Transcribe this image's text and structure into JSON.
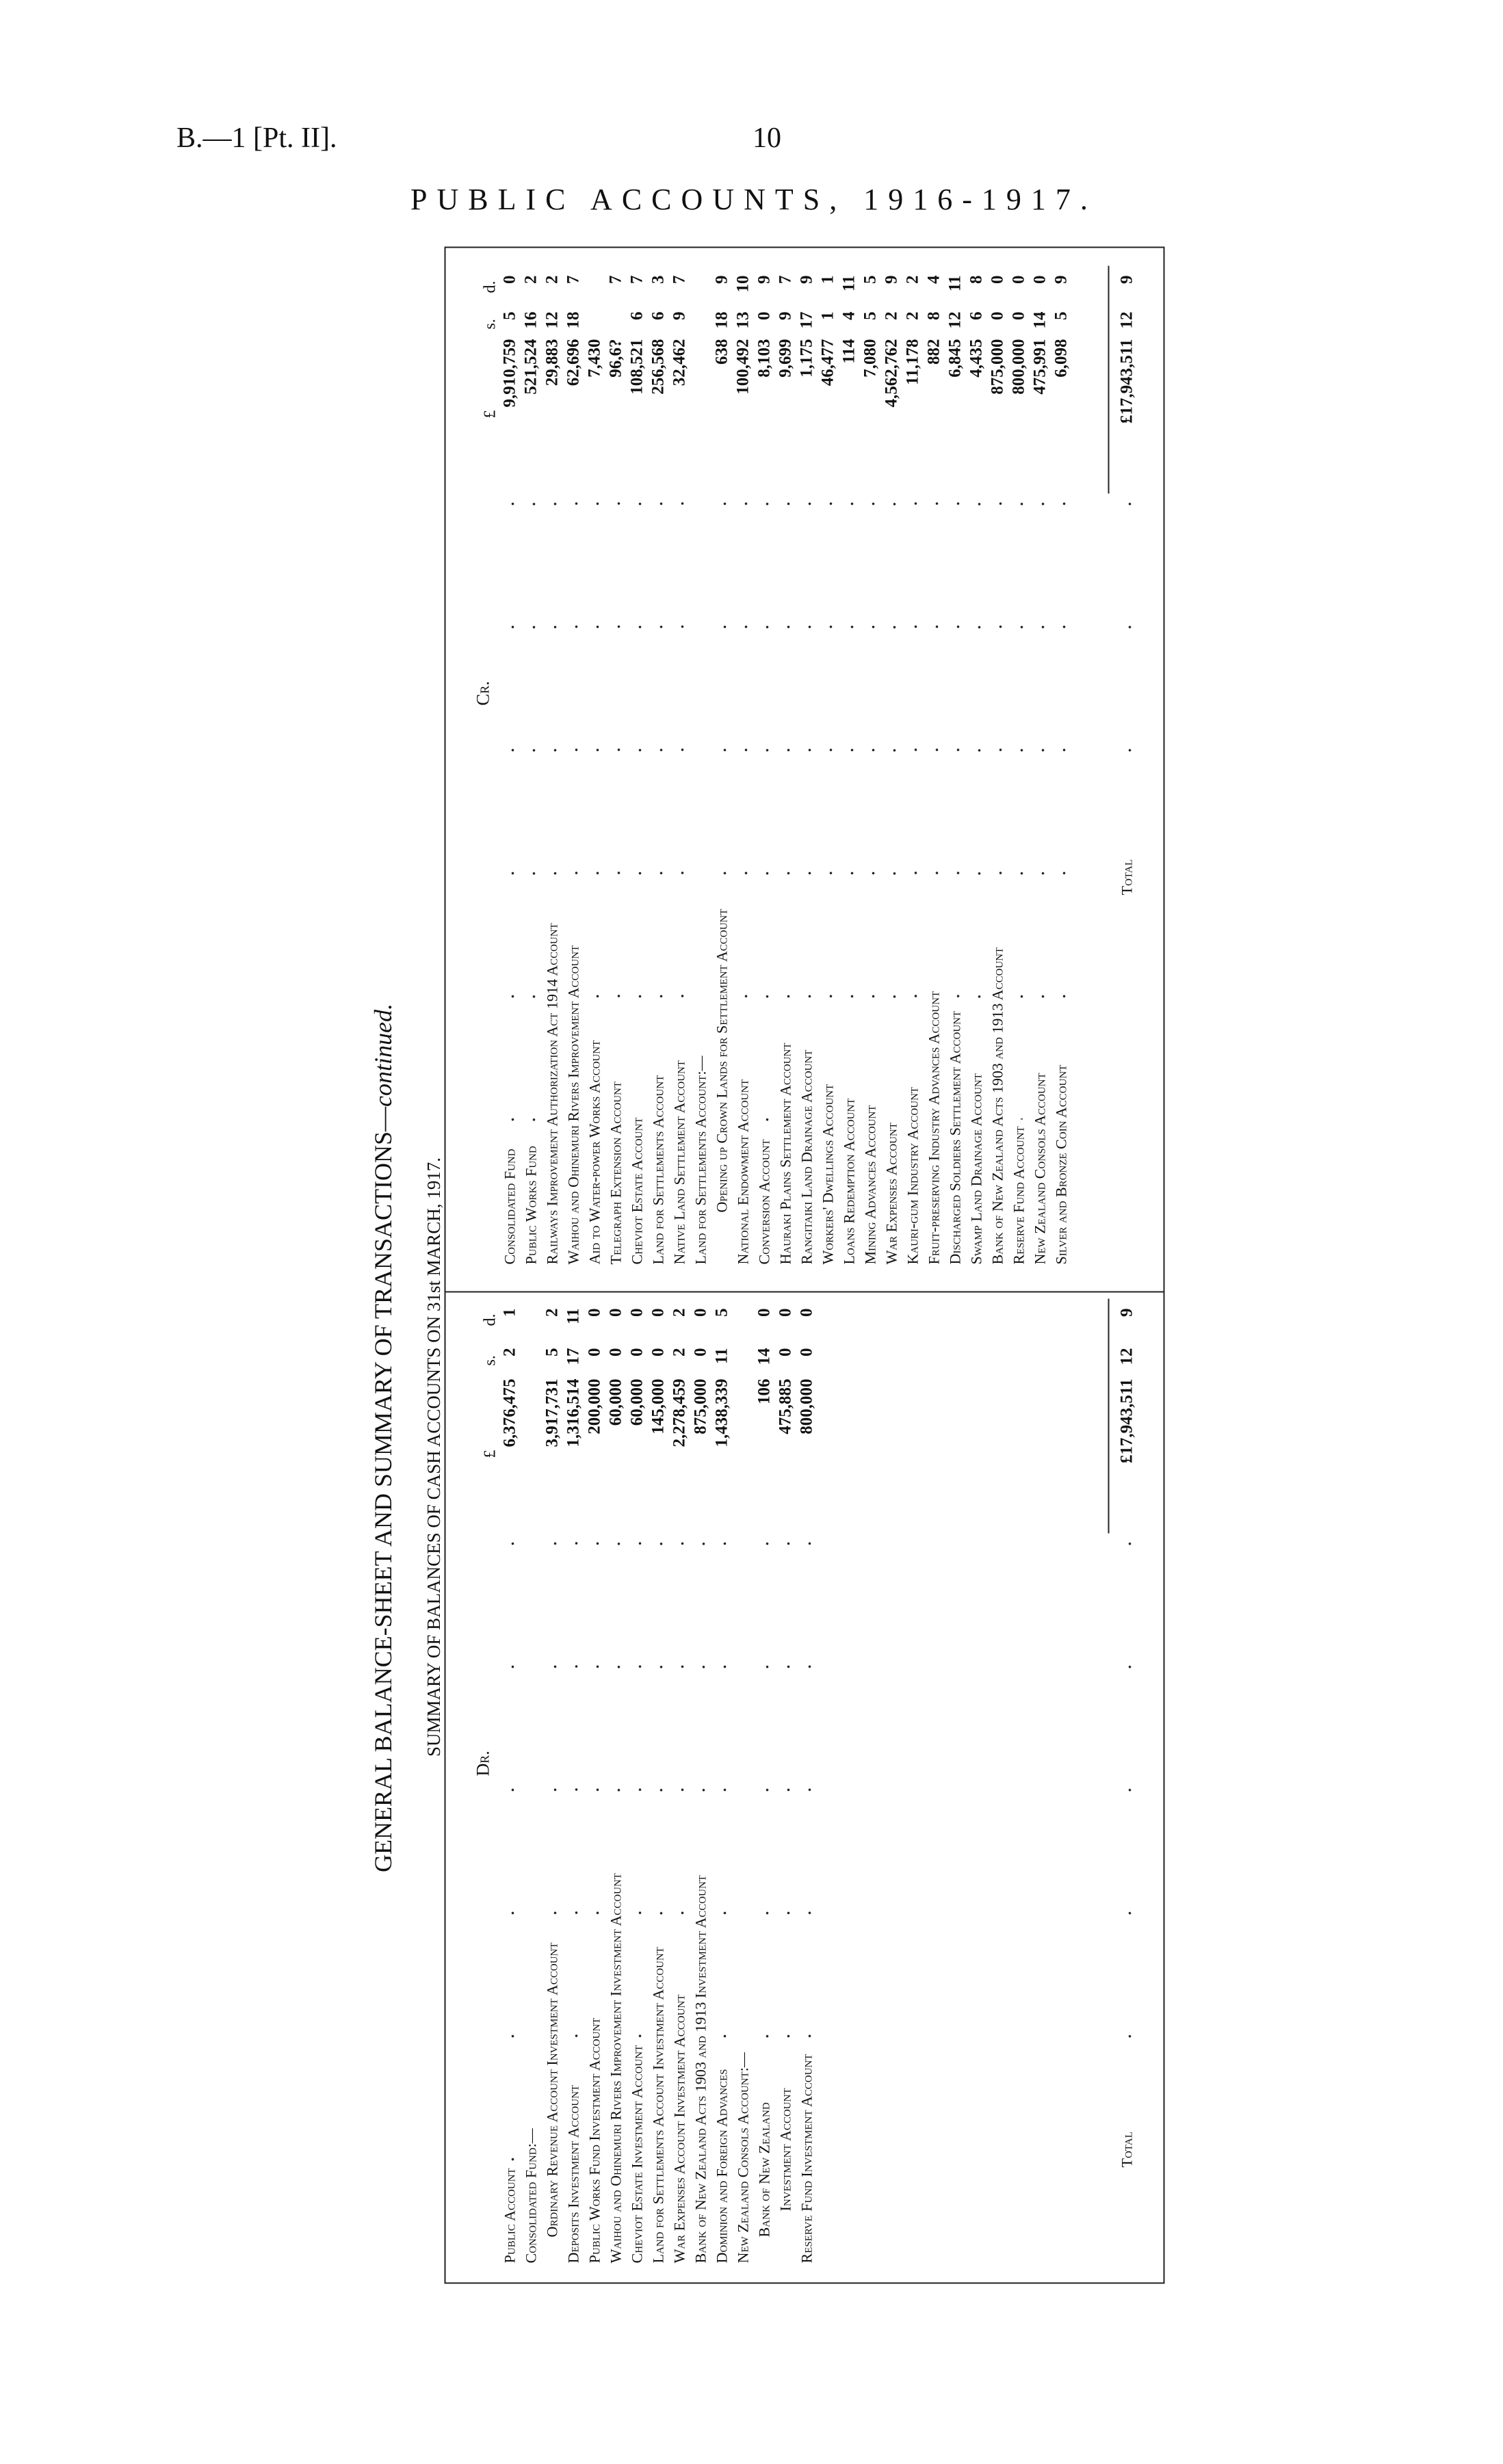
{
  "header": {
    "ref": "B.—1 [Pt. II].",
    "page": "10",
    "title": "PUBLIC ACCOUNTS, 1916-1917."
  },
  "titles": {
    "main": "GENERAL BALANCE-SHEET AND SUMMARY OF TRANSACTIONS—",
    "main_suffix": "continued.",
    "sub": "SUMMARY OF BALANCES OF CASH ACCOUNTS ON 31st MARCH, 1917."
  },
  "units": {
    "pounds": "£",
    "shillings": "s.",
    "pence": "d."
  },
  "dr": {
    "heading": "Dr.",
    "rows": [
      {
        "label": "Public Account",
        "indent": 0,
        "pounds": "6,376,475",
        "s": "2",
        "d": "1"
      },
      {
        "label": "Consolidated Fund:—",
        "indent": 0,
        "pounds": "",
        "s": "",
        "d": ""
      },
      {
        "label": "Ordinary Revenue Account Investment Account",
        "indent": 1,
        "pounds": "3,917,731",
        "s": "5",
        "d": "2"
      },
      {
        "label": "Deposits Investment Account",
        "indent": 0,
        "pounds": "1,316,514",
        "s": "17",
        "d": "11"
      },
      {
        "label": "Public Works Fund Investment Account",
        "indent": 0,
        "pounds": "200,000",
        "s": "0",
        "d": "0"
      },
      {
        "label": "Waihou and Ohinemuri Rivers Improvement Investment Account",
        "indent": 0,
        "pounds": "60,000",
        "s": "0",
        "d": "0"
      },
      {
        "label": "Cheviot Estate Investment Account",
        "indent": 0,
        "pounds": "60,000",
        "s": "0",
        "d": "0"
      },
      {
        "label": "Land for Settlements Account Investment Account",
        "indent": 0,
        "pounds": "145,000",
        "s": "0",
        "d": "0"
      },
      {
        "label": "War Expenses Account Investment Account",
        "indent": 0,
        "pounds": "2,278,459",
        "s": "2",
        "d": "2"
      },
      {
        "label": "Bank of New Zealand Acts 1903 and 1913 Investment Account",
        "indent": 0,
        "pounds": "875,000",
        "s": "0",
        "d": "0"
      },
      {
        "label": "Dominion and Foreign Advances",
        "indent": 0,
        "pounds": "1,438,339",
        "s": "11",
        "d": "5"
      },
      {
        "label": "New Zealand Consols Account:—",
        "indent": 0,
        "pounds": "",
        "s": "",
        "d": ""
      },
      {
        "label": "Bank of New Zealand",
        "indent": 1,
        "pounds": "106",
        "s": "14",
        "d": "0"
      },
      {
        "label": "Investment Account",
        "indent": 2,
        "pounds": "475,885",
        "s": "0",
        "d": "0"
      },
      {
        "label": "Reserve Fund Investment Account",
        "indent": 0,
        "pounds": "800,000",
        "s": "0",
        "d": "0"
      }
    ],
    "total": {
      "label": "Total",
      "pounds": "£17,943,511",
      "s": "12",
      "d": "9"
    }
  },
  "cr": {
    "heading": "Cr.",
    "rows": [
      {
        "label": "Consolidated Fund",
        "indent": 0,
        "pounds": "9,910,759",
        "s": "5",
        "d": "0"
      },
      {
        "label": "Public Works Fund",
        "indent": 0,
        "pounds": "521,524",
        "s": "16",
        "d": "2"
      },
      {
        "label": "Railways Improvement Authorization Act 1914 Account",
        "indent": 0,
        "pounds": "29,883",
        "s": "12",
        "d": "2"
      },
      {
        "label": "Waihou and Ohinemuri Rivers Improvement Account",
        "indent": 0,
        "pounds": "62,696",
        "s": "18",
        "d": "7"
      },
      {
        "label": "Aid to Water-power Works Account",
        "indent": 0,
        "pounds": "7,430",
        "s": "",
        "d": ""
      },
      {
        "label": "Telegraph Extension Account",
        "indent": 0,
        "pounds": "96,6?",
        "s": "",
        "d": "7"
      },
      {
        "label": "Cheviot Estate Account",
        "indent": 0,
        "pounds": "108,521",
        "s": "6",
        "d": "7"
      },
      {
        "label": "Land for Settlements Account",
        "indent": 0,
        "pounds": "256,568",
        "s": "6",
        "d": "3"
      },
      {
        "label": "Native Land Settlement Account",
        "indent": 0,
        "pounds": "32,462",
        "s": "9",
        "d": "7"
      },
      {
        "label": "Land for Settlements Account:—",
        "indent": 0,
        "pounds": "",
        "s": "",
        "d": ""
      },
      {
        "label": "Opening up Crown Lands for Settlement Account",
        "indent": 2,
        "pounds": "638",
        "s": "18",
        "d": "9"
      },
      {
        "label": "National Endowment Account",
        "indent": 0,
        "pounds": "100,492",
        "s": "13",
        "d": "10"
      },
      {
        "label": "Conversion Account",
        "indent": 0,
        "pounds": "8,103",
        "s": "0",
        "d": "9"
      },
      {
        "label": "Hauraki Plains Settlement Account",
        "indent": 0,
        "pounds": "9,699",
        "s": "9",
        "d": "7"
      },
      {
        "label": "Rangitaiki Land Drainage Account",
        "indent": 0,
        "pounds": "1,175",
        "s": "17",
        "d": "9"
      },
      {
        "label": "Workers' Dwellings Account",
        "indent": 0,
        "pounds": "46,477",
        "s": "1",
        "d": "1"
      },
      {
        "label": "Loans Redemption Account",
        "indent": 0,
        "pounds": "114",
        "s": "4",
        "d": "11"
      },
      {
        "label": "Mining Advances Account",
        "indent": 0,
        "pounds": "7,080",
        "s": "5",
        "d": "5"
      },
      {
        "label": "War Expenses Account",
        "indent": 0,
        "pounds": "4,562,762",
        "s": "2",
        "d": "9"
      },
      {
        "label": "Kauri-gum Industry Account",
        "indent": 0,
        "pounds": "11,178",
        "s": "2",
        "d": "2"
      },
      {
        "label": "Fruit-preserving Industry Advances Account",
        "indent": 0,
        "pounds": "882",
        "s": "8",
        "d": "4"
      },
      {
        "label": "Discharged Soldiers Settlement Account",
        "indent": 0,
        "pounds": "6,845",
        "s": "12",
        "d": "11"
      },
      {
        "label": "Swamp Land Drainage Account",
        "indent": 0,
        "pounds": "4,435",
        "s": "6",
        "d": "8"
      },
      {
        "label": "Bank of New Zealand Acts 1903 and 1913 Account",
        "indent": 0,
        "pounds": "875,000",
        "s": "0",
        "d": "0"
      },
      {
        "label": "Reserve Fund Account",
        "indent": 0,
        "pounds": "800,000",
        "s": "0",
        "d": "0"
      },
      {
        "label": "New Zealand Consols Account",
        "indent": 0,
        "pounds": "475,991",
        "s": "14",
        "d": "0"
      },
      {
        "label": "Silver and Bronze Coin Account",
        "indent": 0,
        "pounds": "6,098",
        "s": "5",
        "d": "9"
      }
    ],
    "total": {
      "label": "Total",
      "pounds": "£17,943,511",
      "s": "12",
      "d": "9"
    }
  }
}
